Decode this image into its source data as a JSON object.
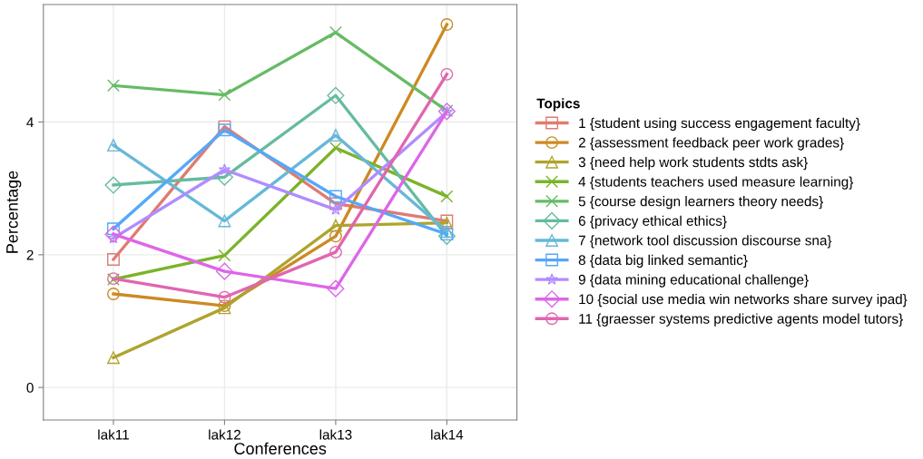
{
  "chart_data": {
    "type": "line",
    "xlabel": "Conferences",
    "ylabel": "Percentage",
    "legend_title": "Topics",
    "categories": [
      "lak11",
      "lak12",
      "lak13",
      "lak14"
    ],
    "ylim": [
      -0.49,
      5.77
    ],
    "yticks": [
      0,
      2,
      4
    ],
    "grid": true,
    "legend": "right",
    "line_style": "solid",
    "series": [
      {
        "name": "1 {student using success engagement faculty}",
        "color": "#e07b72",
        "marker": "square",
        "values": [
          1.93,
          3.93,
          2.77,
          2.51
        ]
      },
      {
        "name": "2 {assessment feedback peer work grades}",
        "color": "#cc8a22",
        "marker": "circle",
        "values": [
          1.41,
          1.23,
          2.28,
          5.47
        ]
      },
      {
        "name": "3 {need help work students stdts ask}",
        "color": "#aea42e",
        "marker": "triangle",
        "values": [
          0.45,
          1.2,
          2.44,
          2.48
        ]
      },
      {
        "name": "4 {students teachers used measure learning}",
        "color": "#7cb32a",
        "marker": "cross",
        "values": [
          1.63,
          1.99,
          3.61,
          2.88
        ]
      },
      {
        "name": "5 {course design learners theory needs}",
        "color": "#66bb66",
        "marker": "cross",
        "values": [
          4.55,
          4.41,
          5.35,
          4.17
        ]
      },
      {
        "name": "6 {privacy ethical ethics}",
        "color": "#66bba0",
        "marker": "diamond",
        "values": [
          3.05,
          3.17,
          4.4,
          2.28
        ]
      },
      {
        "name": "7 {network tool discussion discourse sna}",
        "color": "#66b8d8",
        "marker": "triangle",
        "values": [
          3.65,
          2.51,
          3.8,
          2.35
        ]
      },
      {
        "name": "8 {data big linked semantic}",
        "color": "#55a8f8",
        "marker": "square",
        "values": [
          2.39,
          3.88,
          2.88,
          2.31
        ]
      },
      {
        "name": "9 {data mining educational challenge}",
        "color": "#b08cff",
        "marker": "star",
        "values": [
          2.25,
          3.28,
          2.68,
          4.15
        ]
      },
      {
        "name": "10 {social use media win networks share survey ipad}",
        "color": "#dd66e8",
        "marker": "diamond",
        "values": [
          2.31,
          1.75,
          1.49,
          4.16
        ]
      },
      {
        "name": "11 {graesser systems predictive agents model tutors}",
        "color": "#e066b0",
        "marker": "circle",
        "values": [
          1.64,
          1.36,
          2.04,
          4.72
        ]
      }
    ]
  }
}
